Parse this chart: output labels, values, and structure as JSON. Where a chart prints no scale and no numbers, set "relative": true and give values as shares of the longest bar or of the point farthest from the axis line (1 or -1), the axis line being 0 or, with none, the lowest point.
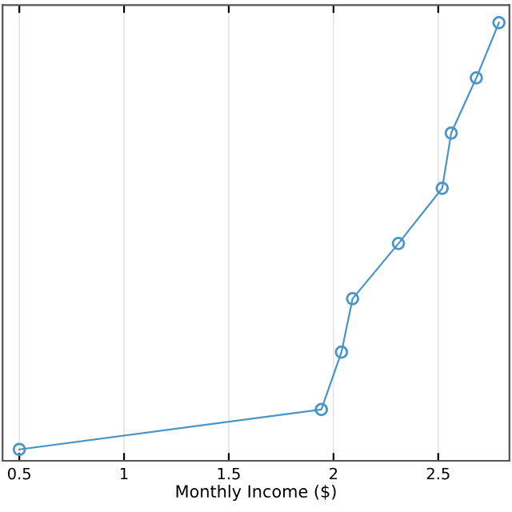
{
  "chart_data": {
    "type": "line",
    "xlabel": "Monthly Income ($)",
    "relative": true,
    "x": [
      0.5,
      1.942,
      2.038,
      2.091,
      2.31,
      2.519,
      2.562,
      2.682,
      2.79
    ],
    "series": [
      {
        "color": "#4a95c8",
        "values": [
          0.026,
          0.117,
          0.248,
          0.37,
          0.496,
          0.622,
          0.748,
          0.874,
          1.0
        ]
      }
    ],
    "xlim": [
      0.42,
      2.84
    ],
    "xticks": [
      0.5,
      1,
      1.5,
      2,
      2.5
    ],
    "grid": "x",
    "marker": "circle",
    "line_style": "solid",
    "legend": false
  }
}
